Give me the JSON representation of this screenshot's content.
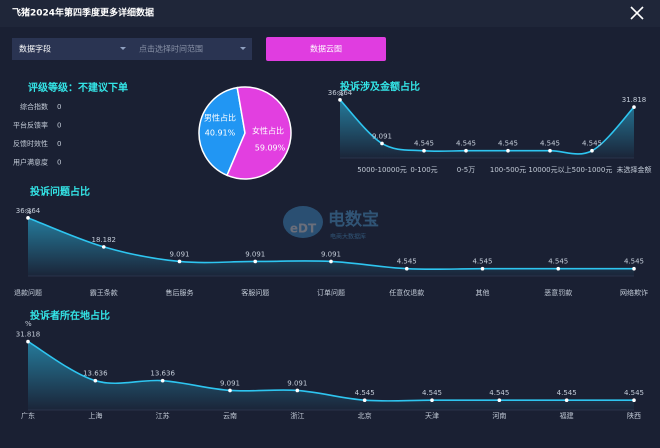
{
  "header": {
    "title": "飞猪2024年第四季度更多详细数据"
  },
  "controls": {
    "field": "数据字段",
    "date_placeholder": "点击选择时间范围",
    "button": "数据云图"
  },
  "rating": {
    "title": "评级等级：不建议下单",
    "items": [
      {
        "label": "综合指数",
        "value": 0
      },
      {
        "label": "平台反馈率",
        "value": 0
      },
      {
        "label": "反馈时效性",
        "value": 0
      },
      {
        "label": "用户满意度",
        "value": 0
      }
    ]
  },
  "watermark": {
    "logo": "eDT",
    "brand": "电数宝",
    "tagline": "电商大数据库"
  },
  "chart_data": [
    {
      "type": "pie",
      "categories": [
        "男性占比",
        "女性占比"
      ],
      "values": [
        40.91,
        59.09
      ],
      "value_labels": [
        "40.91%",
        "59.09%"
      ],
      "colors": [
        "#2196f3",
        "#e23fe0"
      ]
    },
    {
      "type": "line",
      "title": "投诉涉及金额占比",
      "y_label": "%",
      "categories": [
        null,
        "5000-10000元",
        "0-100元",
        "0-5万",
        "100-500元",
        "10000元以上",
        "500-1000元",
        "未选择金额"
      ],
      "values": [
        36.364,
        9.091,
        4.545,
        4.545,
        4.545,
        4.545,
        4.545,
        31.818
      ],
      "color": "#2ec5f0",
      "ylim": [
        0,
        40
      ]
    },
    {
      "type": "line",
      "title": "投诉问题占比",
      "y_label": "%",
      "categories": [
        "退款问题",
        "霸王条款",
        "售后服务",
        "客服问题",
        "订单问题",
        "任意仅退款",
        "其他",
        "恶意罚款",
        "网络欺诈"
      ],
      "values": [
        36.364,
        18.182,
        9.091,
        9.091,
        9.091,
        4.545,
        4.545,
        4.545,
        4.545
      ],
      "color": "#2ec5f0",
      "ylim": [
        0,
        40
      ]
    },
    {
      "type": "line",
      "title": "投诉者所在地占比",
      "y_label": "%",
      "categories": [
        "广东",
        "上海",
        "江苏",
        "云南",
        "浙江",
        "北京",
        "天津",
        "河南",
        "福建",
        "陕西"
      ],
      "values": [
        31.818,
        13.636,
        13.636,
        9.091,
        9.091,
        4.545,
        4.545,
        4.545,
        4.545,
        4.545
      ],
      "color": "#2ec5f0",
      "ylim": [
        0,
        40
      ]
    }
  ]
}
